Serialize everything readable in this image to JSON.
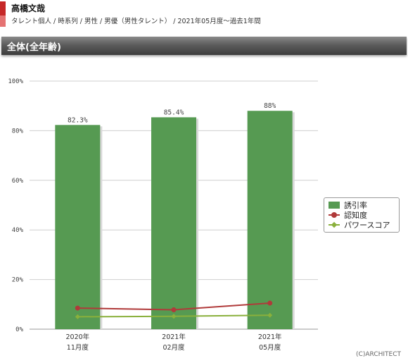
{
  "header": {
    "talent_name": "高橋文哉",
    "breadcrumb": "タレント個人 / 時系列 / 男性 / 男優（男性タレント） / 2021年05月度～過去1年間"
  },
  "section": {
    "title": "全体(全年齢)"
  },
  "chart_data": {
    "type": "bar",
    "categories": [
      [
        "2020年",
        "11月度"
      ],
      [
        "2021年",
        "02月度"
      ],
      [
        "2021年",
        "05月度"
      ]
    ],
    "series": [
      {
        "name": "誘引率",
        "kind": "bar",
        "values": [
          82.3,
          85.4,
          88
        ],
        "labels": [
          "82.3%",
          "85.4%",
          "88%"
        ],
        "color": "#569a52"
      },
      {
        "name": "認知度",
        "kind": "line",
        "values": [
          8.5,
          7.8,
          10.5
        ],
        "color": "#b03a3a"
      },
      {
        "name": "パワースコア",
        "kind": "line",
        "values": [
          5.0,
          5.2,
          5.6
        ],
        "color": "#8ab03c"
      }
    ],
    "ylim": [
      0,
      100
    ],
    "yticks": [
      0,
      20,
      40,
      60,
      80,
      100
    ],
    "ytick_labels": [
      "0%",
      "20%",
      "40%",
      "60%",
      "80%",
      "100%"
    ],
    "grid": true,
    "legend": "right"
  },
  "footer": {
    "copyright": "(C)ARCHITECT"
  }
}
